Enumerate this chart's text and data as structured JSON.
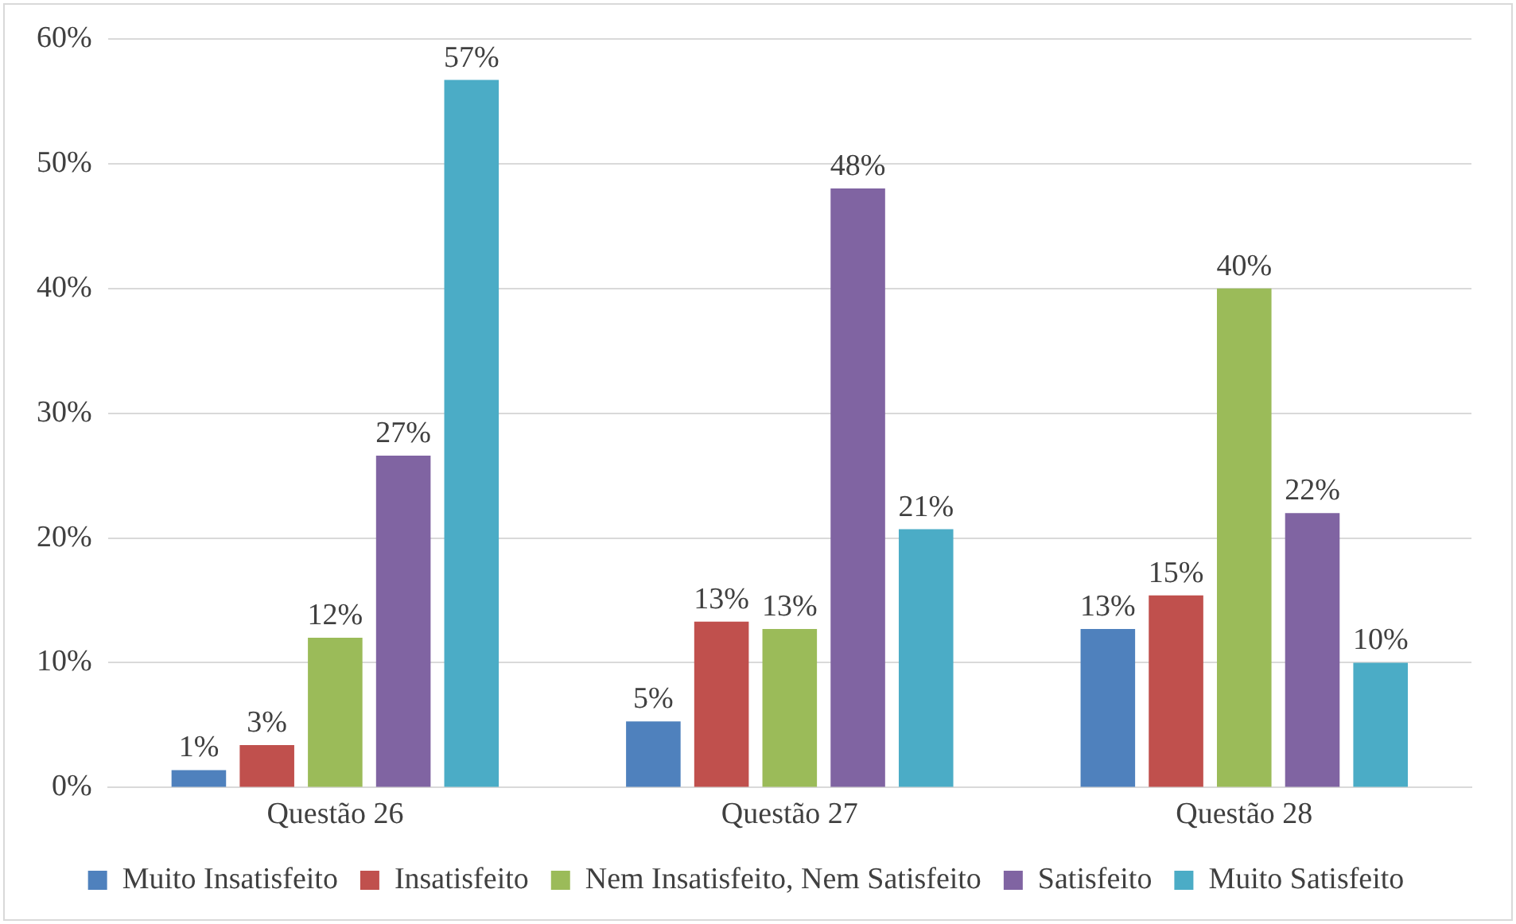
{
  "chart_data": {
    "type": "bar",
    "categories": [
      "Questão 26",
      "Questão 27",
      "Questão 28"
    ],
    "series": [
      {
        "name": "Muito Insatisfeito",
        "color": "#4f81bd",
        "values": [
          1.4,
          5.3,
          12.7
        ],
        "value_labels": [
          "1%",
          "5%",
          "13%"
        ]
      },
      {
        "name": "Insatisfeito",
        "color": "#c0504d",
        "values": [
          3.4,
          13.3,
          15.4
        ],
        "value_labels": [
          "3%",
          "13%",
          "15%"
        ]
      },
      {
        "name": "Nem Insatisfeito, Nem Satisfeito",
        "color": "#9bbb59",
        "values": [
          12.0,
          12.7,
          40.0
        ],
        "value_labels": [
          "12%",
          "13%",
          "40%"
        ]
      },
      {
        "name": "Satisfeito",
        "color": "#8064a2",
        "values": [
          26.6,
          48.0,
          22.0
        ],
        "value_labels": [
          "27%",
          "48%",
          "22%"
        ]
      },
      {
        "name": "Muito Satisfeito",
        "color": "#4bacc6",
        "values": [
          56.7,
          20.7,
          10.0
        ],
        "value_labels": [
          "57%",
          "21%",
          "10%"
        ]
      }
    ],
    "ylim": [
      0,
      60
    ],
    "yticks": [
      {
        "value": 0,
        "label": "0%"
      },
      {
        "value": 10,
        "label": "10%"
      },
      {
        "value": 20,
        "label": "20%"
      },
      {
        "value": 30,
        "label": "30%"
      },
      {
        "value": 40,
        "label": "40%"
      },
      {
        "value": 50,
        "label": "50%"
      },
      {
        "value": 60,
        "label": "60%"
      }
    ],
    "grid": "y",
    "legend": "bottom"
  }
}
